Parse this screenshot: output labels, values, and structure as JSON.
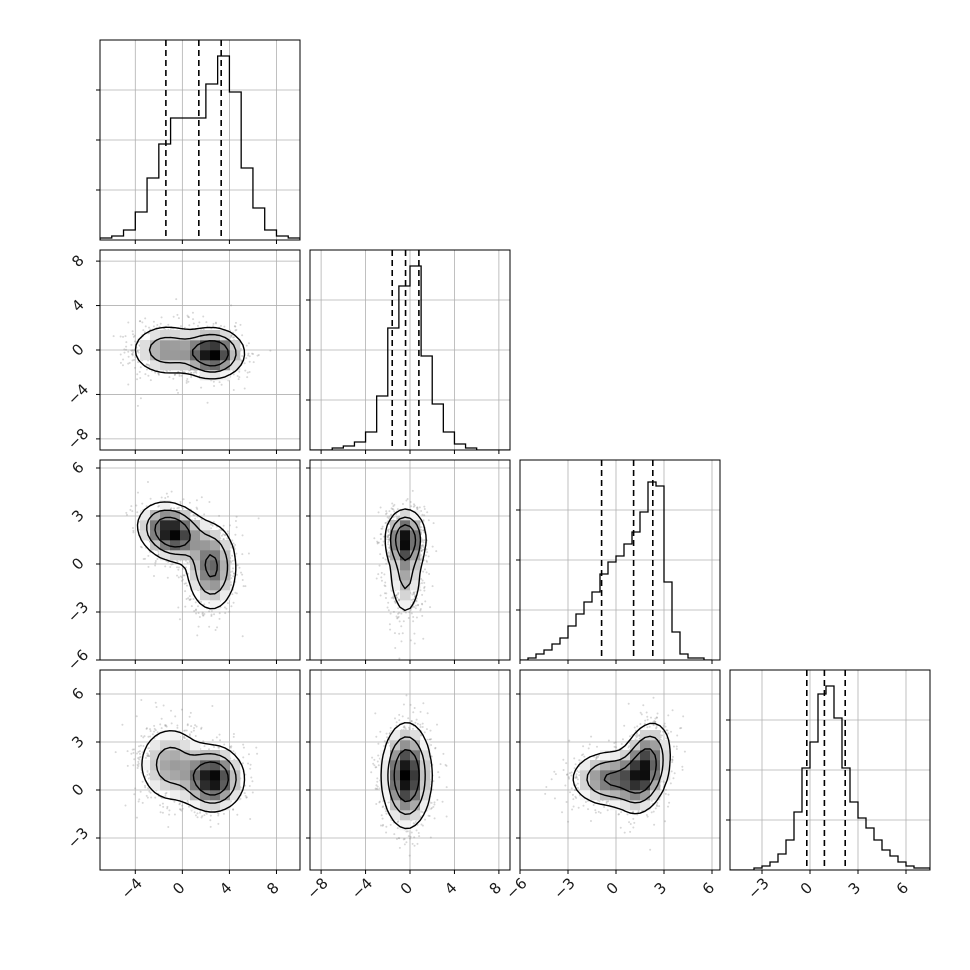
{
  "chart_data": {
    "type": "corner",
    "grid": true,
    "n_params": 4,
    "params": [
      {
        "range": [
          -7,
          10
        ],
        "ticks": [
          -4,
          0,
          4,
          8
        ],
        "tick_labels": [
          "−4",
          "0",
          "4",
          "8"
        ],
        "hist_edges": [
          -7,
          -6,
          -5,
          -4,
          -3,
          -2,
          -1,
          0,
          1,
          2,
          3,
          4,
          5,
          6,
          7,
          8,
          9,
          10
        ],
        "hist_counts": [
          0.01,
          0.02,
          0.05,
          0.14,
          0.31,
          0.48,
          0.61,
          0.61,
          0.61,
          0.78,
          0.92,
          0.74,
          0.36,
          0.16,
          0.05,
          0.02,
          0.01
        ],
        "quantiles": [
          -1.4,
          1.4,
          3.3
        ]
      },
      {
        "range": [
          -9,
          9
        ],
        "ticks": [
          -8,
          -4,
          0,
          4,
          8
        ],
        "tick_labels": [
          "−8",
          "−4",
          "0",
          "4",
          "8"
        ],
        "hist_edges": [
          -9,
          -8,
          -7,
          -6,
          -5,
          -4,
          -3,
          -2,
          -1,
          0,
          1,
          2,
          3,
          4,
          5,
          6,
          7,
          8,
          9
        ],
        "hist_counts": [
          0,
          0,
          0.01,
          0.02,
          0.04,
          0.09,
          0.27,
          0.61,
          0.82,
          0.92,
          0.47,
          0.23,
          0.09,
          0.03,
          0.01,
          0,
          0,
          0
        ],
        "quantiles": [
          -1.6,
          -0.4,
          0.8
        ]
      },
      {
        "range": [
          -6,
          6.5
        ],
        "ticks": [
          -6,
          -3,
          0,
          3,
          6
        ],
        "tick_labels": [
          "−6",
          "−3",
          "0",
          "3",
          "6"
        ],
        "hist_edges": [
          -6,
          -5.5,
          -5,
          -4.5,
          -4,
          -3.5,
          -3,
          -2.5,
          -2,
          -1.5,
          -1,
          -0.5,
          0,
          0.5,
          1,
          1.5,
          2,
          2.5,
          3,
          3.5,
          4,
          4.5,
          5,
          5.5,
          6
        ],
        "hist_counts": [
          0,
          0.01,
          0.03,
          0.05,
          0.08,
          0.11,
          0.17,
          0.23,
          0.29,
          0.34,
          0.43,
          0.49,
          0.52,
          0.58,
          0.64,
          0.74,
          0.89,
          0.87,
          0.39,
          0.14,
          0.03,
          0.01,
          0.01,
          0
        ],
        "quantiles": [
          -0.9,
          1.1,
          2.3
        ]
      },
      {
        "range": [
          -5,
          7.5
        ],
        "ticks": [
          -3,
          0,
          3,
          6
        ],
        "tick_labels": [
          "−3",
          "0",
          "3",
          "6"
        ],
        "hist_edges": [
          -5,
          -4.5,
          -4,
          -3.5,
          -3,
          -2.5,
          -2,
          -1.5,
          -1,
          -0.5,
          0,
          0.5,
          1,
          1.5,
          2,
          2.5,
          3,
          3.5,
          4,
          4.5,
          5,
          5.5,
          6,
          6.5,
          7,
          7.5
        ],
        "hist_counts": [
          0,
          0,
          0,
          0.01,
          0.02,
          0.04,
          0.08,
          0.15,
          0.29,
          0.51,
          0.64,
          0.88,
          0.92,
          0.76,
          0.51,
          0.34,
          0.26,
          0.21,
          0.15,
          0.1,
          0.07,
          0.04,
          0.02,
          0.01,
          0.01
        ],
        "quantiles": [
          -0.2,
          0.9,
          2.2
        ]
      }
    ],
    "pairs": [
      {
        "row": 1,
        "col": 0,
        "components": [
          {
            "cx": 2.6,
            "cy": -0.3,
            "sx": 1.3,
            "sy": 1.1,
            "rho": 0.0,
            "w": 0.6
          },
          {
            "cx": -1.3,
            "cy": 0.0,
            "sx": 1.6,
            "sy": 1.2,
            "rho": 0.0,
            "w": 0.4
          }
        ]
      },
      {
        "row": 2,
        "col": 0,
        "components": [
          {
            "cx": -0.9,
            "cy": 2.0,
            "sx": 1.4,
            "sy": 0.9,
            "rho": -0.2,
            "w": 0.55
          },
          {
            "cx": 2.5,
            "cy": -0.2,
            "sx": 1.1,
            "sy": 1.4,
            "rho": 0.0,
            "w": 0.45
          }
        ]
      },
      {
        "row": 2,
        "col": 1,
        "components": [
          {
            "cx": -0.4,
            "cy": 1.6,
            "sx": 0.9,
            "sy": 0.9,
            "rho": 0.0,
            "w": 0.6
          },
          {
            "cx": -0.4,
            "cy": -0.6,
            "sx": 0.8,
            "sy": 1.5,
            "rho": 0.0,
            "w": 0.4
          }
        ]
      },
      {
        "row": 3,
        "col": 0,
        "components": [
          {
            "cx": 2.6,
            "cy": 0.7,
            "sx": 1.3,
            "sy": 1.0,
            "rho": 0.0,
            "w": 0.6
          },
          {
            "cx": -1.0,
            "cy": 1.6,
            "sx": 1.5,
            "sy": 1.3,
            "rho": 0.0,
            "w": 0.4
          }
        ]
      },
      {
        "row": 3,
        "col": 1,
        "components": [
          {
            "cx": -0.3,
            "cy": 0.9,
            "sx": 1.1,
            "sy": 1.6,
            "rho": 0.0,
            "w": 1.0
          }
        ]
      },
      {
        "row": 3,
        "col": 2,
        "components": [
          {
            "cx": 1.8,
            "cy": 1.4,
            "sx": 0.8,
            "sy": 1.4,
            "rho": 0.3,
            "w": 0.55
          },
          {
            "cx": -0.3,
            "cy": 0.7,
            "sx": 1.3,
            "sy": 0.9,
            "rho": 0.0,
            "w": 0.45
          }
        ]
      }
    ]
  }
}
